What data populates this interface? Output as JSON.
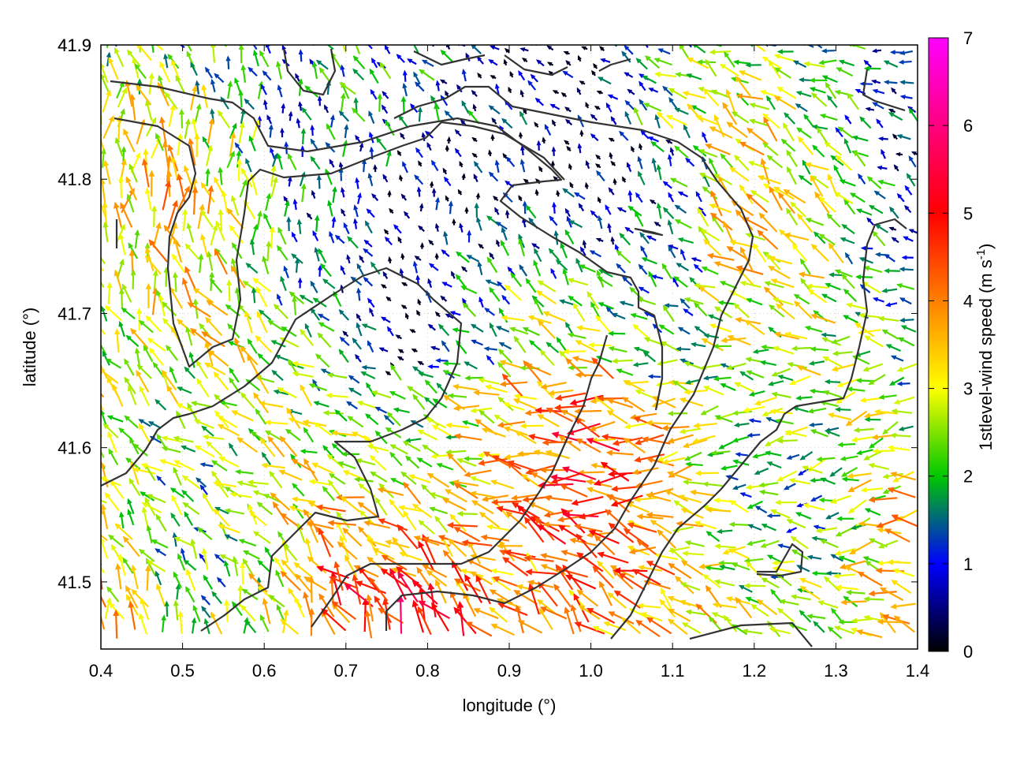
{
  "chart_data": {
    "type": "vector-field",
    "xlabel": "longitude (°)",
    "ylabel": "latitude (°)",
    "xlim": [
      0.4,
      1.4
    ],
    "ylim": [
      41.45,
      41.9
    ],
    "xticks": [
      "0.4",
      "0.5",
      "0.6",
      "0.7",
      "0.8",
      "0.9",
      "1.0",
      "1.1",
      "1.2",
      "1.3",
      "1.4"
    ],
    "yticks": [
      "41.5",
      "41.6",
      "41.7",
      "41.8",
      "41.9"
    ],
    "grid": true,
    "colorbar": {
      "label_main": "1stlevel-wind speed (m s",
      "label_sup": "-1",
      "label_close": ")",
      "min": 0,
      "max": 7,
      "ticks": [
        "0",
        "1",
        "2",
        "3",
        "4",
        "5",
        "6",
        "7"
      ],
      "palette": [
        "#000000",
        "#0000ff",
        "#00c800",
        "#ffff00",
        "#ff8000",
        "#ff0000",
        "#ff00ff"
      ]
    },
    "contour_color": "#333333"
  }
}
